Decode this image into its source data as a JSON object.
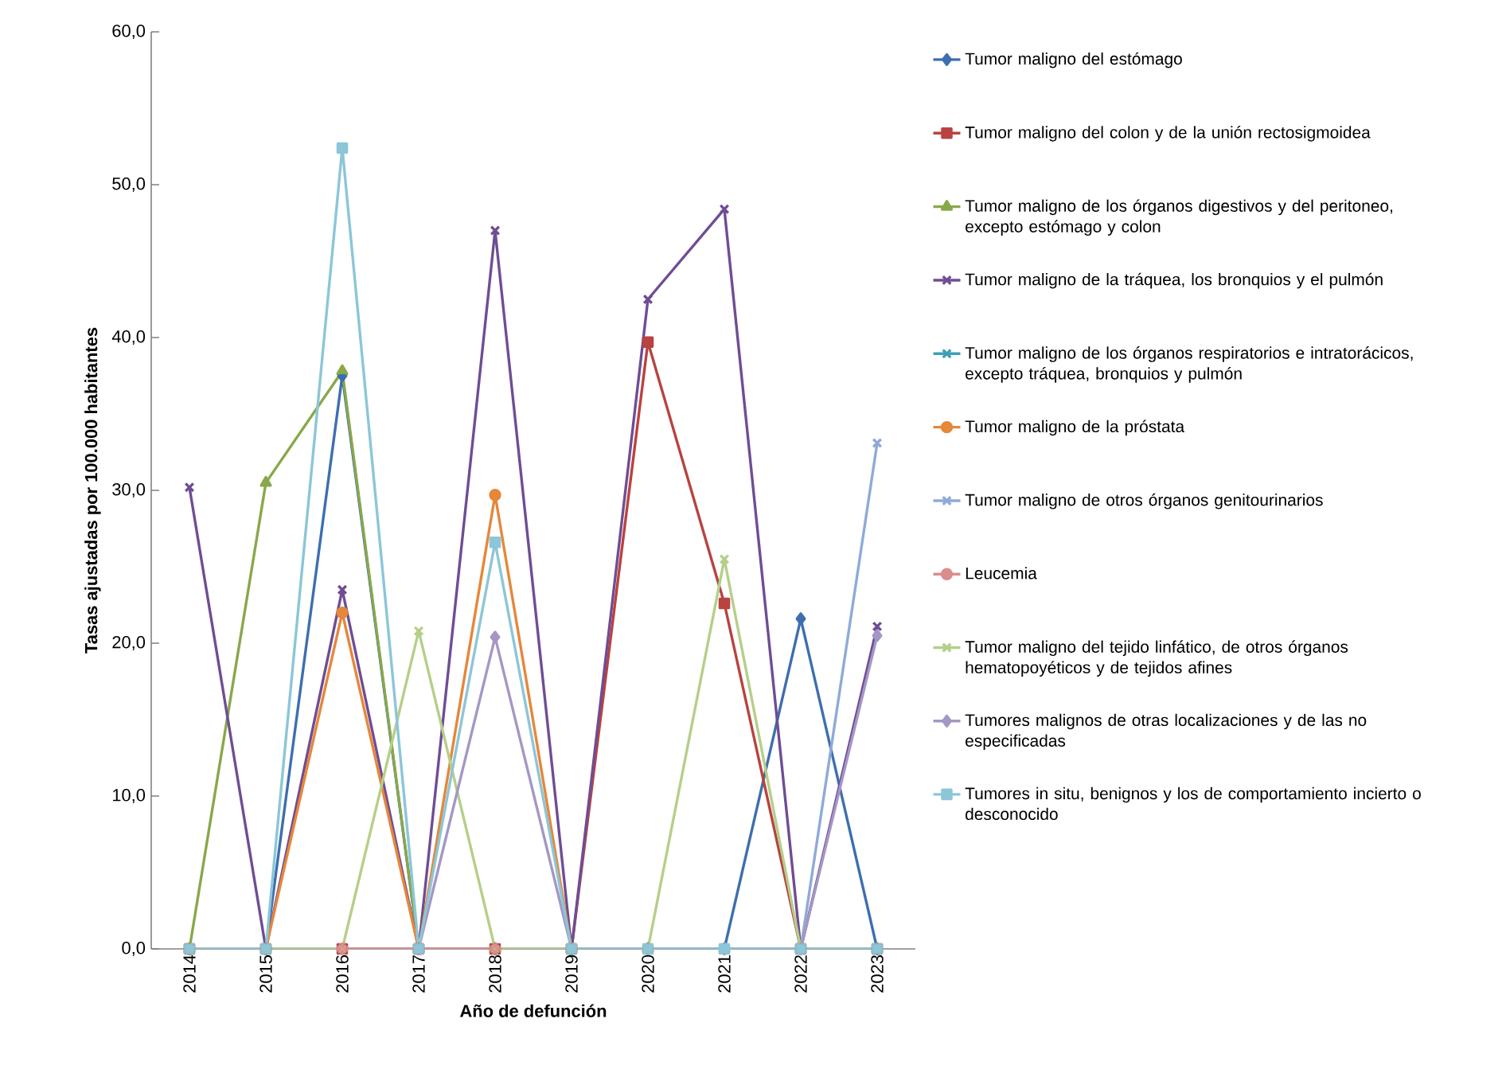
{
  "chart_data": {
    "type": "line",
    "xlabel": "Año de defunción",
    "ylabel": "Tasas ajustadas por 100.000 habitantes",
    "categories": [
      "2014",
      "2015",
      "2016",
      "2017",
      "2018",
      "2019",
      "2020",
      "2021",
      "2022",
      "2023"
    ],
    "ylim": [
      0,
      60
    ],
    "yticks": [
      {
        "value": 0,
        "label": "0,0"
      },
      {
        "value": 10,
        "label": "10,0"
      },
      {
        "value": 20,
        "label": "20,0"
      },
      {
        "value": 30,
        "label": "30,0"
      },
      {
        "value": 40,
        "label": "40,0"
      },
      {
        "value": 50,
        "label": "50,0"
      },
      {
        "value": 60,
        "label": "60,0"
      }
    ],
    "grid": false,
    "legend": "right",
    "line_style": "solid",
    "series": [
      {
        "name": "Tumor maligno del estómago",
        "color": "#3e6eb0",
        "marker": "diamond",
        "values": [
          0,
          0,
          37.5,
          0,
          0,
          0,
          0,
          0,
          21.6,
          0
        ]
      },
      {
        "name": "Tumor maligno del colon y de la unión rectosigmoidea",
        "color": "#b84341",
        "marker": "square",
        "values": [
          0,
          0,
          0,
          0,
          0,
          0,
          39.7,
          22.6,
          0,
          0
        ]
      },
      {
        "name": "Tumor maligno de los órganos digestivos y del peritoneo, excepto estómago y colon",
        "color": "#88a84a",
        "marker": "triangle",
        "values": [
          0,
          30.5,
          37.8,
          0,
          0,
          0,
          0,
          0,
          0,
          0
        ]
      },
      {
        "name": "Tumor maligno de la tráquea, los bronquios y el pulmón",
        "color": "#6f4d94",
        "marker": "cross",
        "values": [
          30.2,
          0,
          23.5,
          0,
          47.0,
          0,
          42.5,
          48.4,
          0,
          21.1
        ]
      },
      {
        "name": "Tumor maligno de los órganos respiratorios e intratorácicos, excepto tráquea, bronquios y pulmón",
        "color": "#3ea0b8",
        "marker": "cross",
        "values": [
          null,
          null,
          0,
          null,
          null,
          null,
          null,
          null,
          null,
          null
        ]
      },
      {
        "name": "Tumor maligno de la próstata",
        "color": "#e6873a",
        "marker": "circle",
        "values": [
          0,
          0,
          22.0,
          0,
          29.7,
          0,
          0,
          null,
          null,
          null
        ]
      },
      {
        "name": "Tumor maligno de otros órganos genitourinarios",
        "color": "#8faad8",
        "marker": "cross",
        "values": [
          0,
          0,
          0,
          0,
          0,
          0,
          0,
          0,
          0,
          33.1
        ]
      },
      {
        "name": "Leucemia",
        "color": "#d98e8c",
        "marker": "circle",
        "values": [
          null,
          null,
          0,
          0,
          0,
          null,
          null,
          null,
          null,
          null
        ]
      },
      {
        "name": "Tumor maligno del tejido linfático, de otros órganos hematopoyéticos y de tejidos afines",
        "color": "#b5cf8a",
        "marker": "cross",
        "values": [
          0,
          0,
          0,
          20.8,
          0,
          0,
          0,
          25.5,
          0,
          0
        ]
      },
      {
        "name": "Tumores malignos de otras localizaciones y de las no especificadas",
        "color": "#a597c4",
        "marker": "diamond",
        "values": [
          null,
          null,
          null,
          0,
          20.4,
          0,
          0,
          0,
          0,
          20.5
        ]
      },
      {
        "name": "Tumores in situ, benignos y los de comportamiento incierto o desconocido",
        "color": "#8cc6d8",
        "marker": "square",
        "values": [
          0,
          0,
          52.4,
          0,
          26.6,
          0,
          0,
          0,
          0,
          0
        ]
      }
    ]
  }
}
